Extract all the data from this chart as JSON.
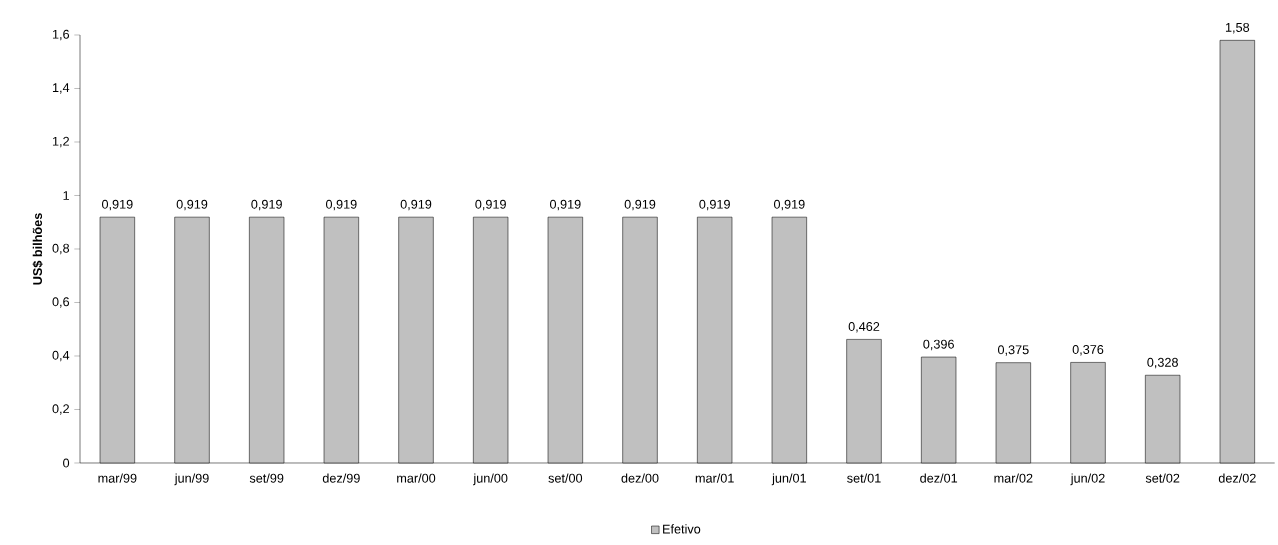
{
  "chart_data": {
    "type": "bar",
    "ylabel": "US$ bilhões",
    "categories": [
      "mar/99",
      "jun/99",
      "set/99",
      "dez/99",
      "mar/00",
      "jun/00",
      "set/00",
      "dez/00",
      "mar/01",
      "jun/01",
      "set/01",
      "dez/01",
      "mar/02",
      "jun/02",
      "set/02",
      "dez/02"
    ],
    "series": [
      {
        "name": "Efetivo",
        "color": "#c0c0c0",
        "values": [
          0.919,
          0.919,
          0.919,
          0.919,
          0.919,
          0.919,
          0.919,
          0.919,
          0.919,
          0.919,
          0.462,
          0.396,
          0.375,
          0.376,
          0.328,
          1.58
        ],
        "value_labels": [
          "0,919",
          "0,919",
          "0,919",
          "0,919",
          "0,919",
          "0,919",
          "0,919",
          "0,919",
          "0,919",
          "0,919",
          "0,462",
          "0,396",
          "0,375",
          "0,376",
          "0,328",
          "1,58"
        ]
      }
    ],
    "ylim": [
      0,
      1.6
    ],
    "yticks": [
      0,
      {
        "value": 0.2,
        "label": "0,2"
      },
      {
        "value": 0.4,
        "label": "0,4"
      },
      {
        "value": 0.6,
        "label": "0,6"
      },
      {
        "value": 0.8,
        "label": "0,8"
      },
      1,
      {
        "value": 1.2,
        "label": "1,2"
      },
      {
        "value": 1.4,
        "label": "1,4"
      },
      {
        "value": 1.6,
        "label": "1,6"
      }
    ],
    "grid": false,
    "legend": "bottom"
  }
}
